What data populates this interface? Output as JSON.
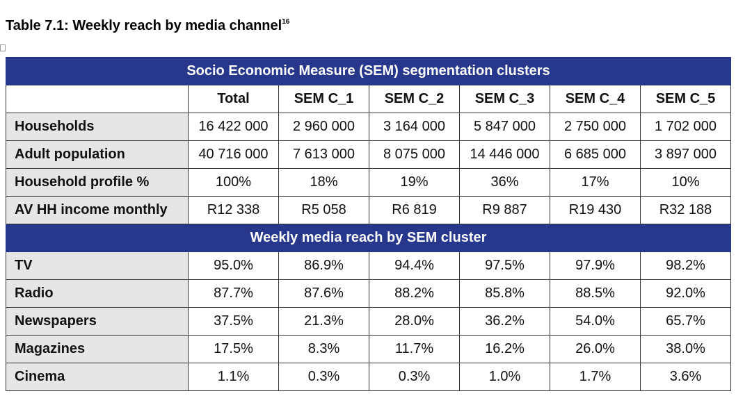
{
  "title": {
    "text": "Table 7.1: Weekly reach by media channel",
    "superscript": "16"
  },
  "table": {
    "band_1": "Socio Economic Measure (SEM) segmentation clusters",
    "columns": [
      "Total",
      "SEM C_1",
      "SEM C_2",
      "SEM C_3",
      "SEM C_4",
      "SEM C_5"
    ],
    "rows": [
      {
        "label": "Households",
        "cells": [
          "16 422 000",
          "2 960 000",
          "3 164 000",
          "5 847 000",
          "2 750 000",
          "1 702 000"
        ]
      },
      {
        "label": "Adult population",
        "cells": [
          "40 716 000",
          "7 613 000",
          "8 075 000",
          "14 446 000",
          "6 685 000",
          "3 897 000"
        ]
      },
      {
        "label": "Household profile %",
        "cells": [
          "100%",
          "18%",
          "19%",
          "36%",
          "17%",
          "10%"
        ]
      },
      {
        "label": "AV HH income monthly",
        "cells": [
          "R12 338",
          "R5 058",
          "R6 819",
          "R9 887",
          "R19 430",
          "R32 188"
        ]
      }
    ],
    "band_2": "Weekly media reach by SEM cluster",
    "media_rows": [
      {
        "label": "TV",
        "cells": [
          "95.0%",
          "86.9%",
          "94.4%",
          "97.5%",
          "97.9%",
          "98.2%"
        ]
      },
      {
        "label": "Radio",
        "cells": [
          "87.7%",
          "87.6%",
          "88.2%",
          "85.8%",
          "88.5%",
          "92.0%"
        ]
      },
      {
        "label": "Newspapers",
        "cells": [
          "37.5%",
          "21.3%",
          "28.0%",
          "36.2%",
          "54.0%",
          "65.7%"
        ]
      },
      {
        "label": "Magazines",
        "cells": [
          "17.5%",
          "8.3%",
          "11.7%",
          "16.2%",
          "26.0%",
          "38.0%"
        ]
      },
      {
        "label": "Cinema",
        "cells": [
          "1.1%",
          "0.3%",
          "0.3%",
          "1.0%",
          "1.7%",
          "3.6%"
        ]
      }
    ]
  }
}
